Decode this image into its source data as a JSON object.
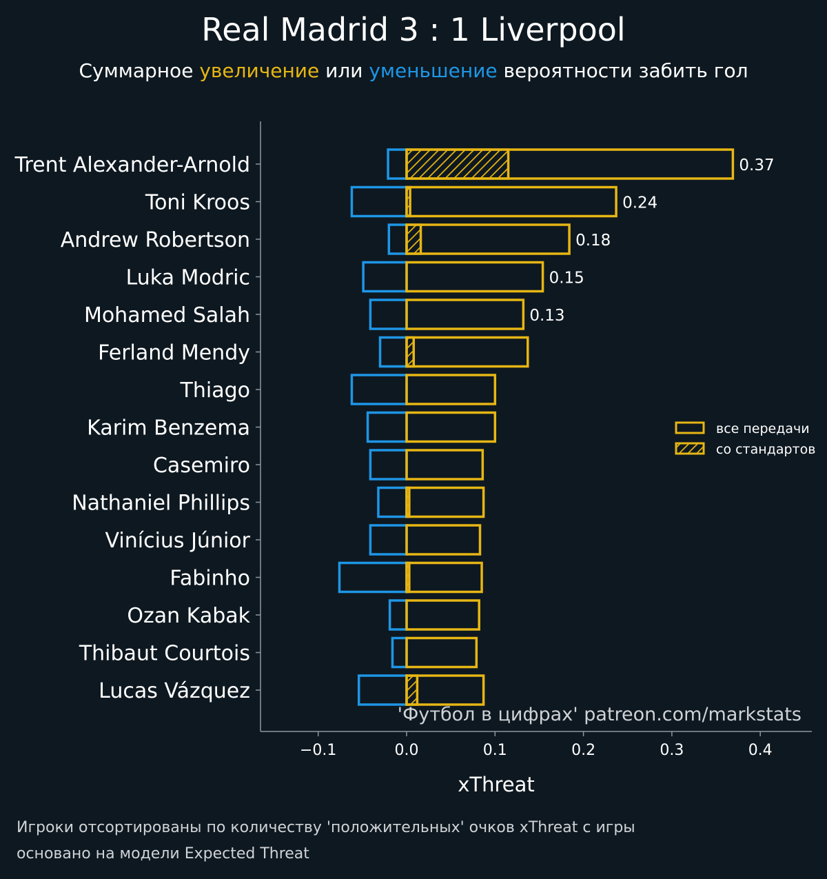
{
  "title": "Real Madrid 3 : 1 Liverpool",
  "subtitle": {
    "prefix": "Суммарное ",
    "increase": "увеличение",
    "middle": " или ",
    "decrease": "уменьшение",
    "suffix": " вероятности забить гол"
  },
  "colors": {
    "background": "#0e1820",
    "positive": "#e6b614",
    "negative": "#1e96e6",
    "axis": "#8c979c"
  },
  "chart_data": {
    "type": "bar",
    "orientation": "horizontal",
    "xlabel": "xThreat",
    "xlim": [
      -0.165,
      0.46
    ],
    "xticks": [
      -0.1,
      0.0,
      0.1,
      0.2,
      0.3,
      0.4
    ],
    "xtick_labels": [
      "−0.1",
      "0.0",
      "0.1",
      "0.2",
      "0.3",
      "0.4"
    ],
    "categories": [
      "Trent Alexander-Arnold",
      "Toni Kroos",
      "Andrew Robertson",
      "Luka Modric",
      "Mohamed Salah",
      "Ferland Mendy",
      "Thiago",
      "Karim Benzema",
      "Casemiro",
      "Nathaniel Phillips",
      "Vinícius Júnior",
      "Fabinho",
      "Ozan Kabak",
      "Thibaut Courtois",
      "Lucas Vázquez"
    ],
    "series": [
      {
        "name": "все передачи",
        "style": "outline",
        "values": [
          0.369,
          0.237,
          0.184,
          0.154,
          0.132,
          0.137,
          0.1,
          0.1,
          0.086,
          0.087,
          0.083,
          0.085,
          0.082,
          0.079,
          0.087
        ]
      },
      {
        "name": "со стандартов",
        "style": "hatched",
        "values": [
          0.115,
          0.004,
          0.016,
          0,
          0,
          0.008,
          0,
          0,
          0,
          0.003,
          0,
          0.003,
          0,
          0,
          0.012
        ]
      },
      {
        "name": "negative",
        "style": "outline-blue",
        "values": [
          -0.021,
          -0.062,
          -0.02,
          -0.049,
          -0.041,
          -0.03,
          -0.062,
          -0.044,
          -0.041,
          -0.032,
          -0.041,
          -0.076,
          -0.019,
          -0.016,
          -0.054
        ]
      }
    ],
    "data_labels": [
      "0.37",
      "0.24",
      "0.18",
      "0.15",
      "0.13"
    ],
    "legend": {
      "placement": "right",
      "entries": [
        "все передачи",
        "со стандартов"
      ]
    },
    "watermark": "'Футбол в цифрах' patreon.com/markstats",
    "grid": false
  },
  "footer": {
    "line1": "Игроки отсортированы по количеству 'положительных' очков xThreat с игры",
    "line2": "основано на модели Expected Threat"
  }
}
